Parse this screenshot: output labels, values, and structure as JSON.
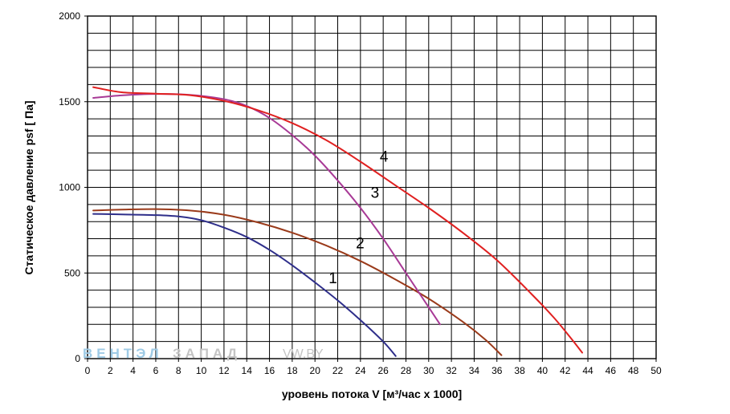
{
  "chart_data": {
    "type": "line",
    "xlabel": "уровень потока  V [м³/час x 1000]",
    "ylabel": "Статическое давление  psf [ Па]",
    "xlim": [
      0,
      50
    ],
    "ylim": [
      0,
      2000
    ],
    "x_ticks": [
      "0",
      "2",
      "4",
      "6",
      "8",
      "10",
      "12",
      "14",
      "16",
      "18",
      "20",
      "22",
      "24",
      "26",
      "28",
      "30",
      "32",
      "34",
      "36",
      "38",
      "40",
      "42",
      "44",
      "46",
      "48",
      "50"
    ],
    "y_ticks": [
      "0",
      "500",
      "1000",
      "1500",
      "2000"
    ],
    "grid": true,
    "series": [
      {
        "name": "1",
        "color": "#2e2e8a",
        "points": [
          [
            0.5,
            845
          ],
          [
            3,
            842
          ],
          [
            6,
            838
          ],
          [
            8,
            830
          ],
          [
            10,
            808
          ],
          [
            12,
            765
          ],
          [
            14,
            710
          ],
          [
            16,
            635
          ],
          [
            18,
            545
          ],
          [
            20,
            445
          ],
          [
            22,
            340
          ],
          [
            24,
            225
          ],
          [
            26,
            100
          ],
          [
            27.1,
            15
          ]
        ]
      },
      {
        "name": "2",
        "color": "#9a3a1a",
        "points": [
          [
            0.5,
            865
          ],
          [
            3,
            870
          ],
          [
            6,
            873
          ],
          [
            9,
            865
          ],
          [
            12,
            840
          ],
          [
            15,
            795
          ],
          [
            18,
            735
          ],
          [
            21,
            660
          ],
          [
            24,
            570
          ],
          [
            27,
            465
          ],
          [
            30,
            350
          ],
          [
            33,
            215
          ],
          [
            35,
            110
          ],
          [
            36.4,
            20
          ]
        ]
      },
      {
        "name": "3",
        "color": "#a83a96",
        "points": [
          [
            0.5,
            1522
          ],
          [
            3,
            1537
          ],
          [
            6,
            1545
          ],
          [
            9,
            1540
          ],
          [
            12,
            1515
          ],
          [
            14,
            1475
          ],
          [
            16,
            1405
          ],
          [
            18,
            1305
          ],
          [
            20,
            1185
          ],
          [
            22,
            1040
          ],
          [
            24,
            880
          ],
          [
            26,
            700
          ],
          [
            28,
            500
          ],
          [
            30,
            300
          ],
          [
            31,
            200
          ]
        ]
      },
      {
        "name": "4",
        "color": "#e02020",
        "points": [
          [
            0.5,
            1585
          ],
          [
            3,
            1555
          ],
          [
            6,
            1547
          ],
          [
            9,
            1538
          ],
          [
            12,
            1505
          ],
          [
            15,
            1450
          ],
          [
            18,
            1375
          ],
          [
            21,
            1275
          ],
          [
            24,
            1150
          ],
          [
            27,
            1015
          ],
          [
            30,
            880
          ],
          [
            33,
            735
          ],
          [
            36,
            575
          ],
          [
            39,
            380
          ],
          [
            41,
            240
          ],
          [
            42.5,
            120
          ],
          [
            43.5,
            35
          ]
        ]
      }
    ],
    "annotations": [
      {
        "text": "1",
        "x": 21.2,
        "y": 440
      },
      {
        "text": "2",
        "x": 23.6,
        "y": 645
      },
      {
        "text": "3",
        "x": 24.9,
        "y": 940
      },
      {
        "text": "4",
        "x": 25.7,
        "y": 1150
      }
    ]
  },
  "watermark": {
    "part1": "ВЕНТЭЛ",
    "part2": "ЗАПАД",
    "part3": "VW.BY"
  }
}
